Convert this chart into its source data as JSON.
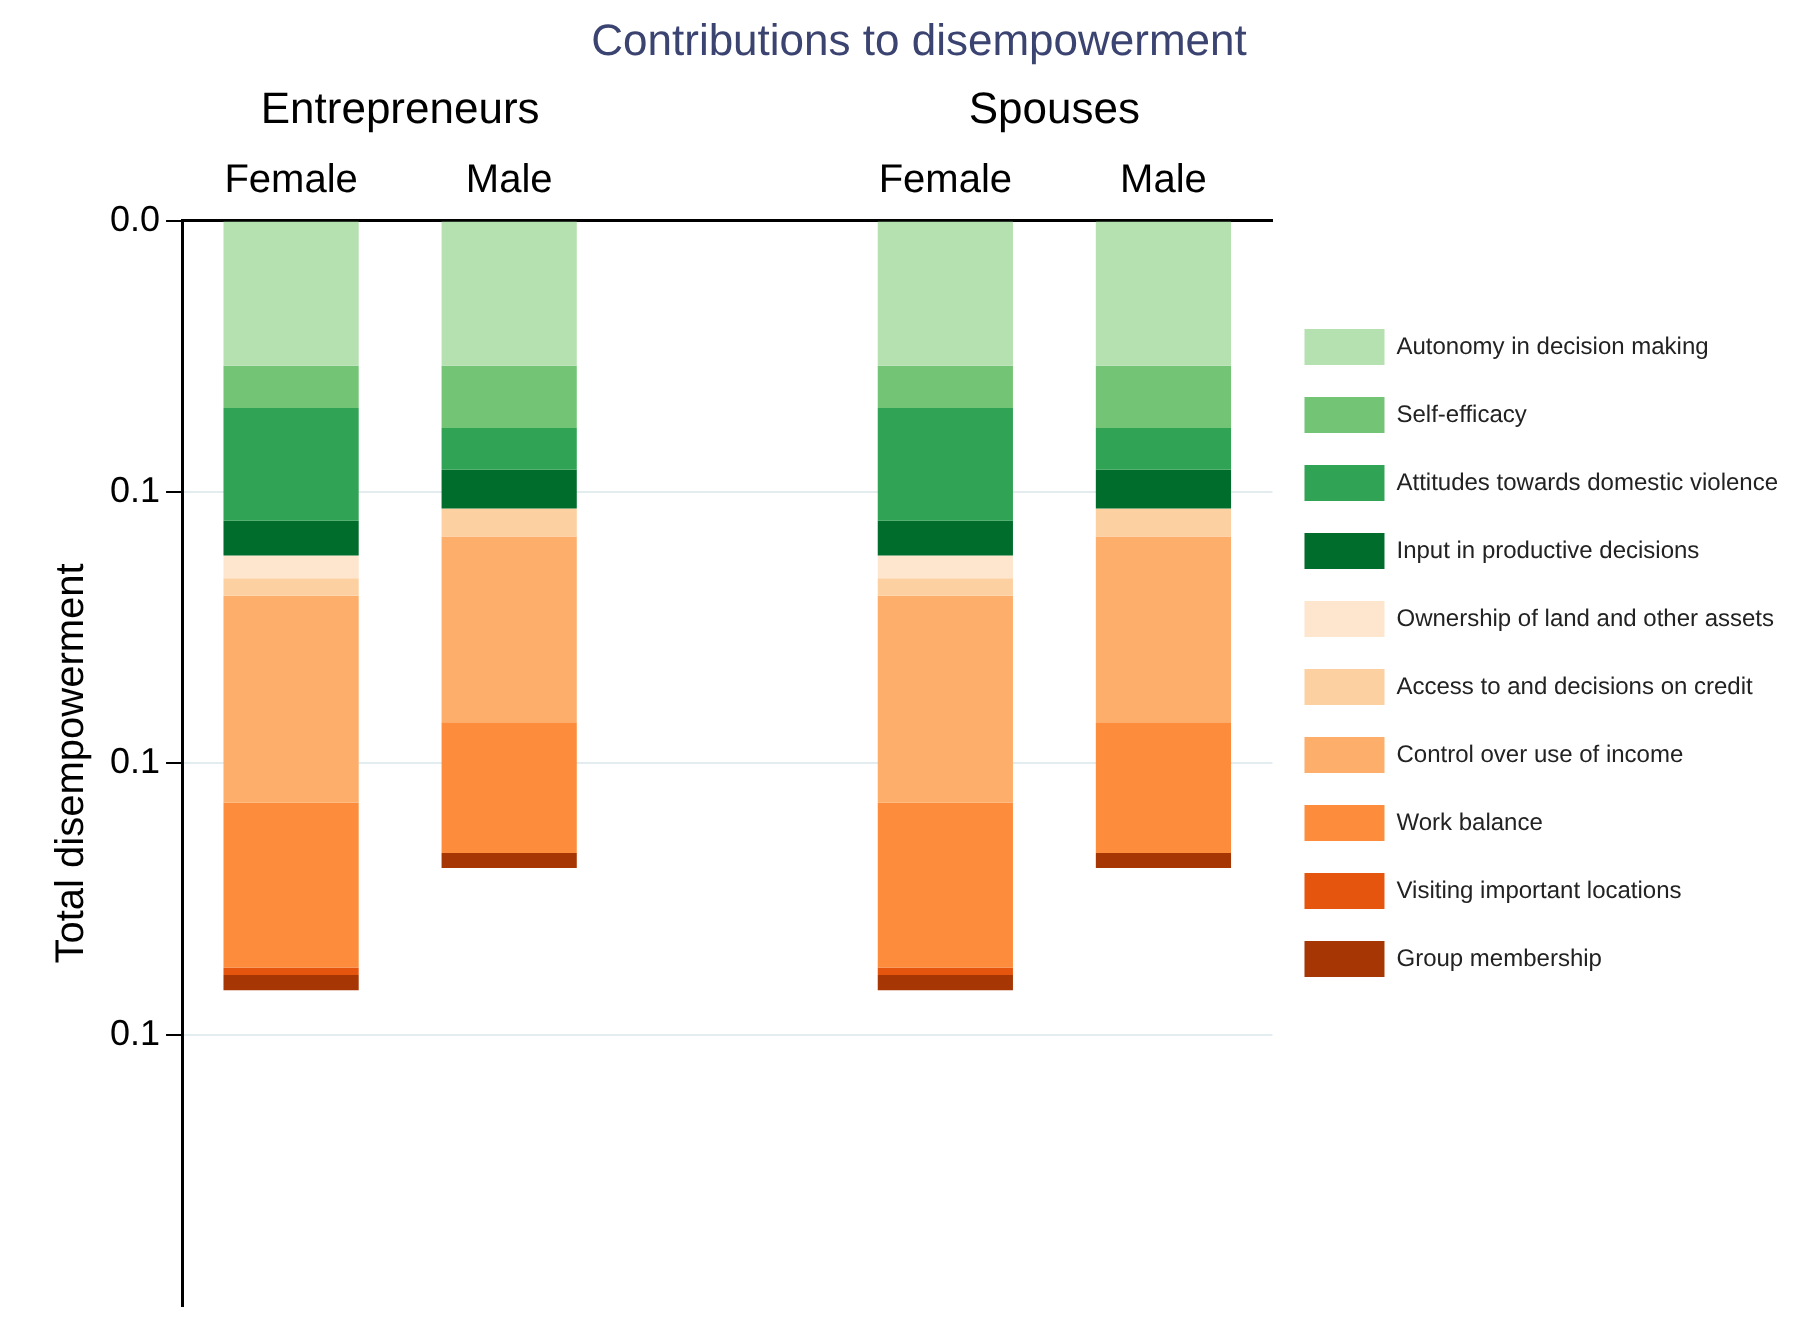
{
  "chart_data": {
    "type": "bar",
    "stacked": true,
    "title": "Contributions to disempowerment",
    "ylabel": "Total disempowerment",
    "categories": [
      "Female",
      "Male",
      null,
      "Female",
      "Male"
    ],
    "annotations": [
      "Entrepreneurs",
      "Spouses"
    ],
    "ylim": [
      0.2,
      0
    ],
    "yticks": [
      {
        "value": 0,
        "label": "0.0"
      },
      {
        "value": 0.05,
        "label": "0.1"
      },
      {
        "value": 0.1,
        "label": "0.1"
      },
      {
        "value": 0.15,
        "label": "0.1"
      }
    ],
    "grid": "y",
    "legend": "right",
    "series": [
      {
        "name": "Autonomy in decision making",
        "color": "#b5e0b0",
        "values": [
          0.0267,
          0.0267,
          null,
          0.0267,
          0.0267
        ]
      },
      {
        "name": "Self-efficacy",
        "color": "#74c476",
        "values": [
          0.0078,
          0.0115,
          null,
          0.0078,
          0.0115
        ]
      },
      {
        "name": "Attitudes towards domestic violence",
        "color": "#31a354",
        "values": [
          0.0208,
          0.0077,
          null,
          0.0208,
          0.0077
        ]
      },
      {
        "name": "Input in productive decisions",
        "color": "#006d2c",
        "values": [
          0.0064,
          0.0071,
          null,
          0.0064,
          0.0071
        ]
      },
      {
        "name": "Ownership of land and other assets",
        "color": "#fee6ce",
        "values": [
          0.0042,
          0,
          null,
          0.0042,
          0
        ]
      },
      {
        "name": "Access to and decisions on credit",
        "color": "#fdd0a2",
        "values": [
          0.0032,
          0.0052,
          null,
          0.0032,
          0.0052
        ]
      },
      {
        "name": "Control over use of income",
        "color": "#fdae6b",
        "values": [
          0.0381,
          0.0342,
          null,
          0.0381,
          0.0342
        ]
      },
      {
        "name": "Work balance",
        "color": "#fd8d3c",
        "values": [
          0.0304,
          0.0241,
          null,
          0.0304,
          0.0241
        ]
      },
      {
        "name": "Visiting important locations",
        "color": "#e6550d",
        "values": [
          0.0014,
          0,
          null,
          0.0014,
          0
        ]
      },
      {
        "name": "Group membership",
        "color": "#a63603",
        "values": [
          0.0028,
          0.0028,
          null,
          0.0028,
          0.0028
        ]
      }
    ]
  }
}
